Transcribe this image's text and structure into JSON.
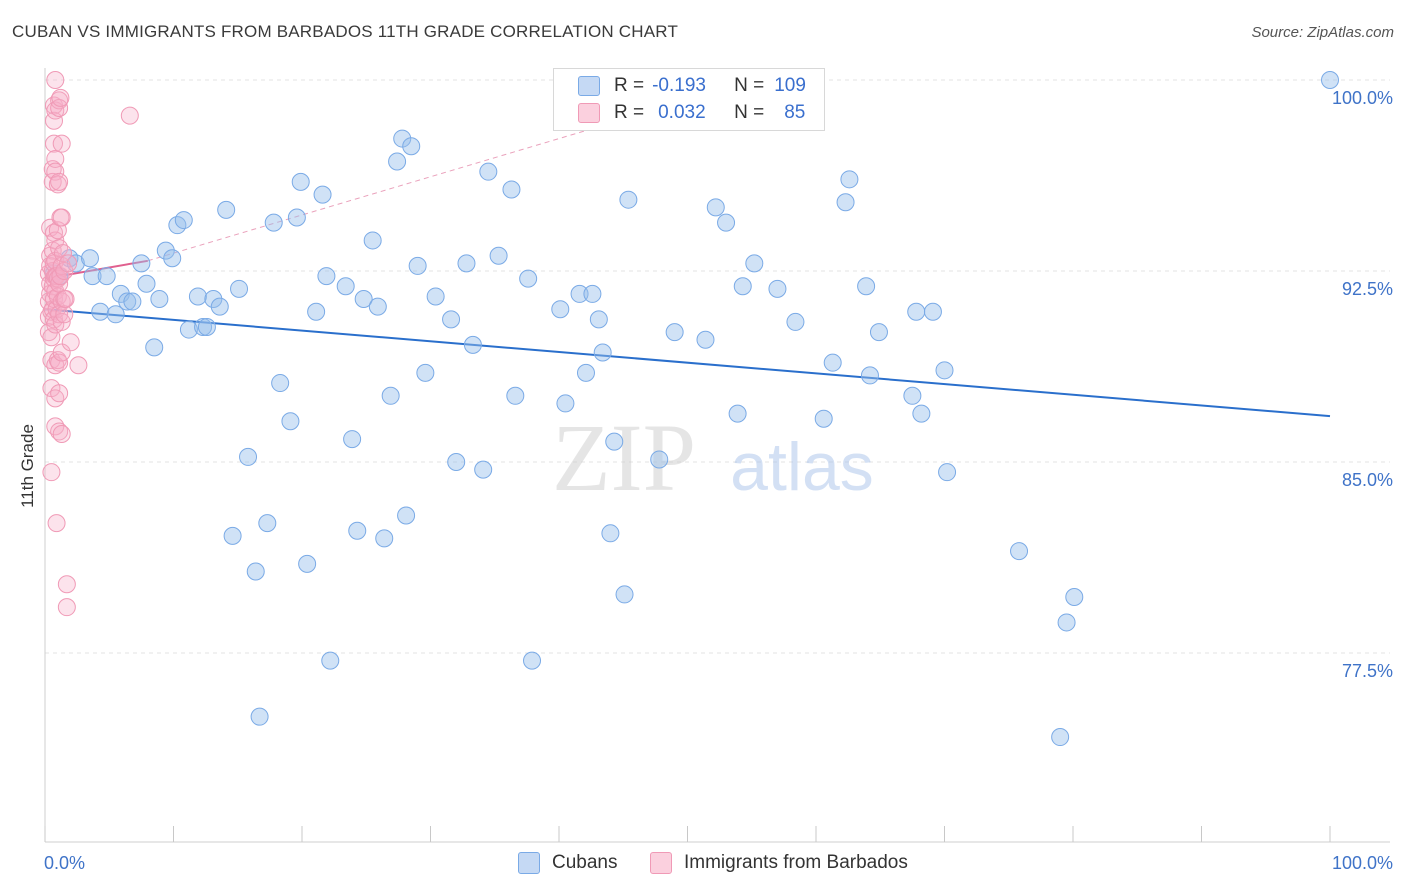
{
  "title": "CUBAN VS IMMIGRANTS FROM BARBADOS 11TH GRADE CORRELATION CHART",
  "source": "Source: ZipAtlas.com",
  "legend_stats": {
    "r_label": "R =",
    "n_label": "N =",
    "cubans": {
      "r": "-0.193",
      "n": "109"
    },
    "barbados": {
      "r": "0.032",
      "n": "85"
    }
  },
  "bottom_legend": {
    "cubans": "Cubans",
    "barbados": "Immigrants from Barbados"
  },
  "watermark": {
    "zip": "ZIP",
    "atlas": "atlas"
  },
  "colors": {
    "cubans": "#7aaae6",
    "cubans_line": "#2a6fcc",
    "barbados": "#f09ab6",
    "barbados_line": "#e0608f",
    "tick_text": "#3f73c8"
  },
  "chart_data": {
    "type": "scatter",
    "title": "CUBAN VS IMMIGRANTS FROM BARBADOS 11TH GRADE CORRELATION CHART",
    "xlabel": "",
    "ylabel": "11th Grade",
    "xlim": [
      0,
      100
    ],
    "ylim": [
      71.0,
      101.0
    ],
    "x_tick_labels": [
      "0.0%",
      "100.0%"
    ],
    "y_ticks": [
      77.5,
      85.0,
      92.5,
      100.0
    ],
    "y_tick_labels": [
      "77.5%",
      "85.0%",
      "92.5%",
      "100.0%"
    ],
    "grid": true,
    "legend_position": "top-center",
    "series": [
      {
        "name": "Cubans",
        "color": "#7aaae6",
        "trend": [
          [
            0,
            91.0
          ],
          [
            100,
            86.8
          ]
        ],
        "points": [
          [
            0.7,
            92.4
          ],
          [
            1.1,
            92.3
          ],
          [
            1.9,
            93.0
          ],
          [
            2.4,
            92.8
          ],
          [
            3.5,
            93.0
          ],
          [
            3.7,
            92.3
          ],
          [
            4.3,
            90.9
          ],
          [
            4.8,
            92.3
          ],
          [
            5.5,
            90.8
          ],
          [
            5.9,
            91.6
          ],
          [
            6.4,
            91.3
          ],
          [
            6.8,
            91.3
          ],
          [
            7.5,
            92.8
          ],
          [
            7.9,
            92.0
          ],
          [
            8.5,
            89.5
          ],
          [
            8.9,
            91.4
          ],
          [
            9.4,
            93.3
          ],
          [
            9.9,
            93.0
          ],
          [
            10.3,
            94.3
          ],
          [
            10.8,
            94.5
          ],
          [
            11.2,
            90.2
          ],
          [
            11.9,
            91.5
          ],
          [
            12.3,
            90.3
          ],
          [
            12.6,
            90.3
          ],
          [
            13.1,
            91.4
          ],
          [
            13.6,
            91.1
          ],
          [
            14.1,
            94.9
          ],
          [
            14.6,
            82.1
          ],
          [
            15.1,
            91.8
          ],
          [
            15.8,
            85.2
          ],
          [
            16.4,
            80.7
          ],
          [
            16.7,
            75.0
          ],
          [
            17.3,
            82.6
          ],
          [
            17.8,
            94.4
          ],
          [
            18.3,
            88.1
          ],
          [
            19.1,
            86.6
          ],
          [
            19.6,
            94.6
          ],
          [
            19.9,
            96.0
          ],
          [
            20.4,
            81.0
          ],
          [
            21.1,
            90.9
          ],
          [
            21.6,
            95.5
          ],
          [
            21.9,
            92.3
          ],
          [
            22.2,
            77.2
          ],
          [
            23.4,
            91.9
          ],
          [
            23.9,
            85.9
          ],
          [
            24.3,
            82.3
          ],
          [
            24.8,
            91.4
          ],
          [
            25.5,
            93.7
          ],
          [
            25.9,
            91.1
          ],
          [
            26.4,
            82.0
          ],
          [
            26.9,
            87.6
          ],
          [
            27.4,
            96.8
          ],
          [
            27.8,
            97.7
          ],
          [
            28.1,
            82.9
          ],
          [
            28.5,
            97.4
          ],
          [
            29.0,
            92.7
          ],
          [
            29.6,
            88.5
          ],
          [
            30.4,
            91.5
          ],
          [
            31.6,
            90.6
          ],
          [
            32.0,
            85.0
          ],
          [
            32.8,
            92.8
          ],
          [
            33.3,
            89.6
          ],
          [
            34.1,
            84.7
          ],
          [
            34.5,
            96.4
          ],
          [
            35.3,
            93.1
          ],
          [
            36.3,
            95.7
          ],
          [
            36.6,
            87.6
          ],
          [
            37.6,
            92.2
          ],
          [
            37.9,
            77.2
          ],
          [
            40.1,
            91.0
          ],
          [
            40.5,
            87.3
          ],
          [
            41.6,
            91.6
          ],
          [
            42.1,
            88.5
          ],
          [
            42.6,
            91.6
          ],
          [
            43.1,
            90.6
          ],
          [
            43.4,
            89.3
          ],
          [
            44.0,
            82.2
          ],
          [
            44.3,
            85.8
          ],
          [
            45.1,
            79.8
          ],
          [
            45.4,
            95.3
          ],
          [
            47.8,
            85.1
          ],
          [
            49.0,
            90.1
          ],
          [
            51.4,
            89.8
          ],
          [
            52.2,
            95.0
          ],
          [
            53.0,
            94.4
          ],
          [
            53.9,
            86.9
          ],
          [
            54.3,
            91.9
          ],
          [
            55.2,
            92.8
          ],
          [
            57.0,
            91.8
          ],
          [
            58.4,
            90.5
          ],
          [
            60.6,
            86.7
          ],
          [
            61.3,
            88.9
          ],
          [
            62.3,
            95.2
          ],
          [
            62.6,
            96.1
          ],
          [
            63.9,
            91.9
          ],
          [
            64.2,
            88.4
          ],
          [
            64.9,
            90.1
          ],
          [
            67.5,
            87.6
          ],
          [
            67.8,
            90.9
          ],
          [
            68.2,
            86.9
          ],
          [
            69.1,
            90.9
          ],
          [
            70.0,
            88.6
          ],
          [
            70.2,
            84.6
          ],
          [
            75.8,
            81.5
          ],
          [
            79.5,
            78.7
          ],
          [
            80.1,
            79.7
          ],
          [
            79.0,
            74.2
          ],
          [
            100,
            100.0
          ]
        ]
      },
      {
        "name": "Immigrants from Barbados",
        "color": "#f09ab6",
        "trend": [
          [
            0,
            92.2
          ],
          [
            8.0,
            92.9
          ]
        ],
        "trend_extension": [
          [
            8.0,
            92.9
          ],
          [
            46.0,
            98.6
          ]
        ],
        "points": [
          [
            0.3,
            92.4
          ],
          [
            0.3,
            91.3
          ],
          [
            0.3,
            90.7
          ],
          [
            0.3,
            90.1
          ],
          [
            0.4,
            94.2
          ],
          [
            0.4,
            93.1
          ],
          [
            0.4,
            92.7
          ],
          [
            0.4,
            92.0
          ],
          [
            0.4,
            91.6
          ],
          [
            0.5,
            90.9
          ],
          [
            0.5,
            89.9
          ],
          [
            0.5,
            89.0
          ],
          [
            0.5,
            87.9
          ],
          [
            0.5,
            84.6
          ],
          [
            0.6,
            96.5
          ],
          [
            0.6,
            96.0
          ],
          [
            0.6,
            93.3
          ],
          [
            0.6,
            92.5
          ],
          [
            0.6,
            91.9
          ],
          [
            0.6,
            91.0
          ],
          [
            0.7,
            99.0
          ],
          [
            0.7,
            98.4
          ],
          [
            0.7,
            97.5
          ],
          [
            0.7,
            94.0
          ],
          [
            0.7,
            92.8
          ],
          [
            0.7,
            92.2
          ],
          [
            0.7,
            91.4
          ],
          [
            0.7,
            90.6
          ],
          [
            0.8,
            100.0
          ],
          [
            0.8,
            98.8
          ],
          [
            0.8,
            96.9
          ],
          [
            0.8,
            96.4
          ],
          [
            0.8,
            93.7
          ],
          [
            0.8,
            92.9
          ],
          [
            0.8,
            92.3
          ],
          [
            0.8,
            91.7
          ],
          [
            0.8,
            90.4
          ],
          [
            0.8,
            88.8
          ],
          [
            0.8,
            87.5
          ],
          [
            0.8,
            86.4
          ],
          [
            0.9,
            92.3
          ],
          [
            0.9,
            91.0
          ],
          [
            0.9,
            82.6
          ],
          [
            1.0,
            95.9
          ],
          [
            1.0,
            94.1
          ],
          [
            1.0,
            92.2
          ],
          [
            1.0,
            91.5
          ],
          [
            1.0,
            89.0
          ],
          [
            1.1,
            99.2
          ],
          [
            1.1,
            98.9
          ],
          [
            1.1,
            96.0
          ],
          [
            1.1,
            93.4
          ],
          [
            1.1,
            92.0
          ],
          [
            1.1,
            90.8
          ],
          [
            1.1,
            88.9
          ],
          [
            1.1,
            87.7
          ],
          [
            1.1,
            86.2
          ],
          [
            1.2,
            99.3
          ],
          [
            1.2,
            94.6
          ],
          [
            1.2,
            92.3
          ],
          [
            1.3,
            97.5
          ],
          [
            1.3,
            94.6
          ],
          [
            1.3,
            92.7
          ],
          [
            1.3,
            91.3
          ],
          [
            1.3,
            90.5
          ],
          [
            1.3,
            89.3
          ],
          [
            1.3,
            86.1
          ],
          [
            1.4,
            93.2
          ],
          [
            1.5,
            92.5
          ],
          [
            1.5,
            91.4
          ],
          [
            1.5,
            90.8
          ],
          [
            1.6,
            91.4
          ],
          [
            1.7,
            80.2
          ],
          [
            1.7,
            79.3
          ],
          [
            1.8,
            92.8
          ],
          [
            2.0,
            89.7
          ],
          [
            2.6,
            88.8
          ],
          [
            6.6,
            98.6
          ]
        ]
      }
    ]
  }
}
